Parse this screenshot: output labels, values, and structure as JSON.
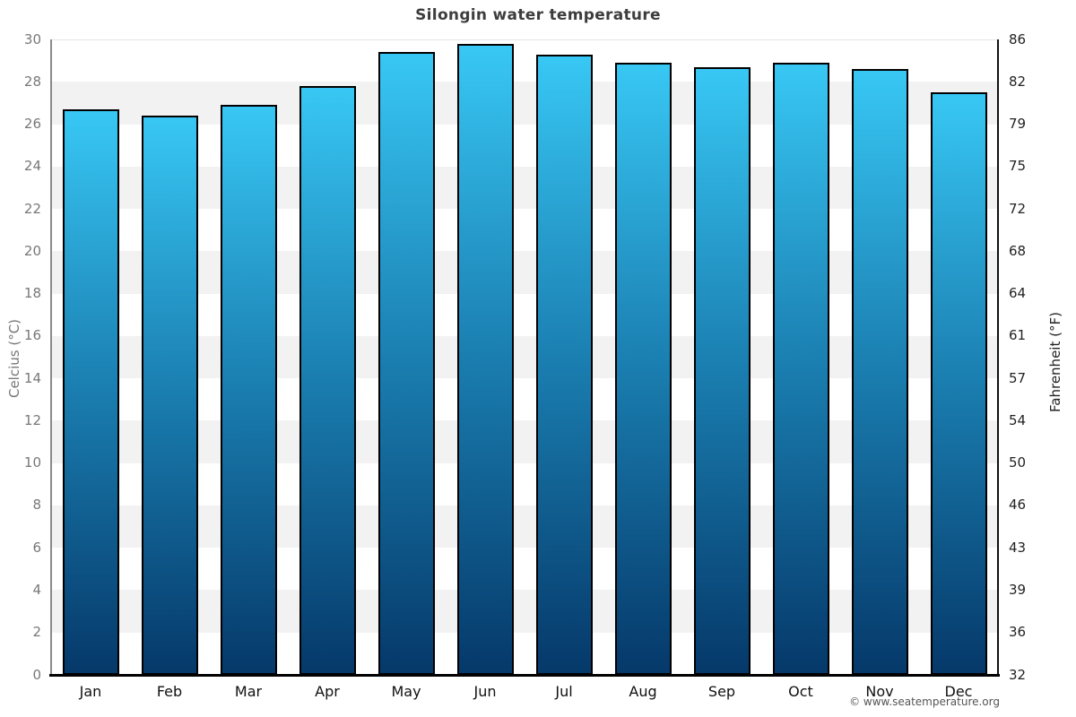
{
  "page": {
    "footer": "© www.seatemperature.org"
  },
  "chart_data": {
    "type": "bar",
    "title": "Silongin water temperature",
    "categories": [
      "Jan",
      "Feb",
      "Mar",
      "Apr",
      "May",
      "Jun",
      "Jul",
      "Aug",
      "Sep",
      "Oct",
      "Nov",
      "Dec"
    ],
    "values": [
      26.7,
      26.4,
      26.9,
      27.8,
      29.4,
      29.8,
      29.3,
      28.9,
      28.7,
      28.9,
      28.6,
      27.5
    ],
    "ylabel_left": "Celcius (°C)",
    "ylabel_right": "Fahrenheit (°F)",
    "ylim": [
      0,
      30
    ],
    "celsius_ticks": [
      0,
      2,
      4,
      6,
      8,
      10,
      12,
      14,
      16,
      18,
      20,
      22,
      24,
      26,
      28,
      30
    ],
    "fahrenheit_tick_labels": [
      "32",
      "36",
      "39",
      "43",
      "46",
      "50",
      "54",
      "57",
      "61",
      "64",
      "68",
      "72",
      "75",
      "79",
      "82",
      "86"
    ],
    "grid": "alternating-horizontal-bands",
    "legend": "none",
    "colors": {
      "bar_gradient_top": "#38c7f4",
      "bar_gradient_mid": "#1b80b2",
      "bar_gradient_bottom": "#05396a",
      "bar_border": "#000000",
      "band_gray": "#f2f2f2",
      "band_white": "#ffffff",
      "axis_left_line": "#8a8a8a",
      "axis_right_line": "#111111",
      "axis_bottom_line": "#000000",
      "tick_label_left": "#777777",
      "tick_label_right": "#222222",
      "month_label": "#111111",
      "title": "#3d3d3d",
      "footer": "#555555"
    }
  }
}
